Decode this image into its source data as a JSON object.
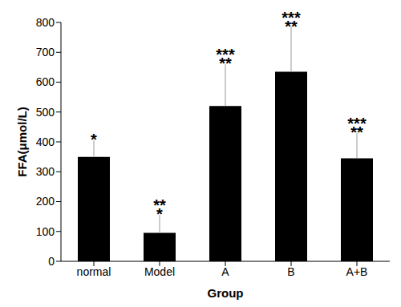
{
  "chart_data": {
    "type": "bar",
    "categories": [
      "normal",
      "Model",
      "A",
      "B",
      "A+B"
    ],
    "values": [
      350,
      95,
      520,
      635,
      345
    ],
    "error_bars": [
      55,
      60,
      140,
      150,
      85
    ],
    "annotations": [
      [
        "*"
      ],
      [
        "**",
        "*"
      ],
      [
        "***",
        "**"
      ],
      [
        "***",
        "**"
      ],
      [
        "***",
        "**"
      ]
    ],
    "color": "#000000",
    "xlabel": "Group",
    "ylabel": "FFA(μmol/L)",
    "ylim": [
      0,
      800
    ],
    "yticks": [
      0,
      100,
      200,
      300,
      400,
      500,
      600,
      700,
      800
    ],
    "grid": false
  }
}
